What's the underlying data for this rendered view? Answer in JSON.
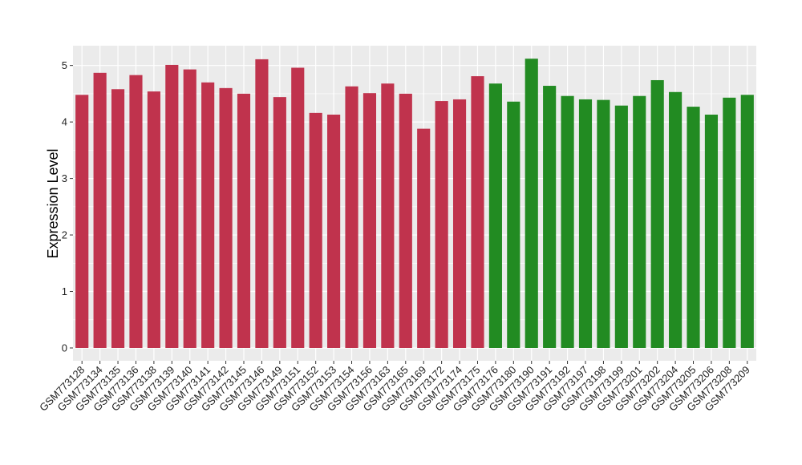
{
  "chart_data": {
    "type": "bar",
    "title": "",
    "xlabel": "",
    "ylabel": "Expression Level",
    "ylim": [
      0,
      5.35
    ],
    "yticks": [
      0,
      1,
      2,
      3,
      4,
      5
    ],
    "grid": true,
    "panel_background": "#ebebeb",
    "grid_color": "#ffffff",
    "categories": [
      "GSM773128",
      "GSM773134",
      "GSM773135",
      "GSM773136",
      "GSM773138",
      "GSM773139",
      "GSM773140",
      "GSM773141",
      "GSM773142",
      "GSM773145",
      "GSM773146",
      "GSM773149",
      "GSM773151",
      "GSM773152",
      "GSM773153",
      "GSM773154",
      "GSM773156",
      "GSM773163",
      "GSM773165",
      "GSM773169",
      "GSM773172",
      "GSM773174",
      "GSM773175",
      "GSM773176",
      "GSM773180",
      "GSM773190",
      "GSM773191",
      "GSM773192",
      "GSM773197",
      "GSM773198",
      "GSM773199",
      "GSM773201",
      "GSM773202",
      "GSM773204",
      "GSM773205",
      "GSM773206",
      "GSM773208",
      "GSM773209"
    ],
    "values": [
      4.48,
      4.87,
      4.58,
      4.83,
      4.54,
      5.01,
      4.93,
      4.7,
      4.6,
      4.5,
      5.11,
      4.44,
      4.96,
      4.16,
      4.13,
      4.63,
      4.51,
      4.68,
      4.5,
      3.88,
      4.37,
      4.4,
      4.81,
      4.68,
      4.36,
      5.12,
      4.64,
      4.46,
      4.4,
      4.39,
      4.29,
      4.46,
      4.74,
      4.53,
      4.27,
      4.13,
      4.43,
      4.48
    ],
    "colors": [
      "#c0334d",
      "#c0334d",
      "#c0334d",
      "#c0334d",
      "#c0334d",
      "#c0334d",
      "#c0334d",
      "#c0334d",
      "#c0334d",
      "#c0334d",
      "#c0334d",
      "#c0334d",
      "#c0334d",
      "#c0334d",
      "#c0334d",
      "#c0334d",
      "#c0334d",
      "#c0334d",
      "#c0334d",
      "#c0334d",
      "#c0334d",
      "#c0334d",
      "#c0334d",
      "#228b22",
      "#228b22",
      "#228b22",
      "#228b22",
      "#228b22",
      "#228b22",
      "#228b22",
      "#228b22",
      "#228b22",
      "#228b22",
      "#228b22",
      "#228b22",
      "#228b22",
      "#228b22",
      "#228b22"
    ]
  }
}
